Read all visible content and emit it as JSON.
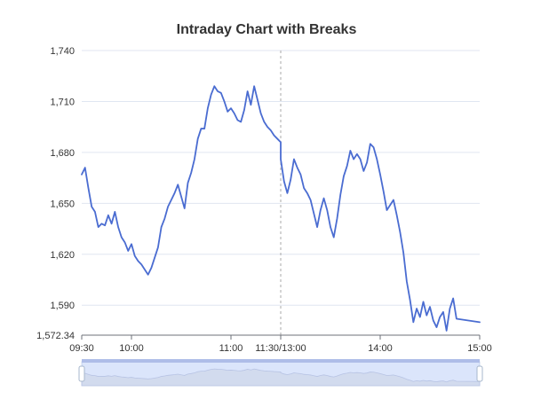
{
  "colors": {
    "series": "#4a6cd1",
    "title": "#333333",
    "axis": "#6e7079",
    "grid": "#e0e6f1",
    "break": "#aaaaaa",
    "zoom_frame": "#d2dbee"
  },
  "chart_data": {
    "type": "line",
    "title": "Intraday Chart with Breaks",
    "xlabel": "",
    "ylabel": "",
    "ylim": [
      1572.34,
      1740
    ],
    "y_ticks": [
      1572.34,
      1590,
      1620,
      1650,
      1680,
      1710,
      1740
    ],
    "y_tick_labels": [
      "1,572.34",
      "1,590",
      "1,620",
      "1,650",
      "1,680",
      "1,710",
      "1,740"
    ],
    "x_axis": {
      "range": [
        "09:30",
        "15:00"
      ],
      "break": {
        "start": "11:30",
        "end": "13:00",
        "label": "11:30/13:00"
      },
      "ticks": [
        {
          "time": "09:30",
          "label": "09:30"
        },
        {
          "time": "10:00",
          "label": "10:00"
        },
        {
          "time": "11:00",
          "label": "11:00"
        },
        {
          "time": "11:30",
          "label": "11:30/13:00"
        },
        {
          "time": "14:00",
          "label": "14:00"
        },
        {
          "time": "15:00",
          "label": "15:00"
        }
      ]
    },
    "grid": true,
    "legend": "none",
    "data_zoom": {
      "visible": true,
      "start_percent": 0,
      "end_percent": 100
    },
    "series": [
      {
        "values": [
          {
            "t": "09:30",
            "v": 1667
          },
          {
            "t": "09:32",
            "v": 1671
          },
          {
            "t": "09:34",
            "v": 1659
          },
          {
            "t": "09:36",
            "v": 1648
          },
          {
            "t": "09:38",
            "v": 1645
          },
          {
            "t": "09:40",
            "v": 1636
          },
          {
            "t": "09:42",
            "v": 1638
          },
          {
            "t": "09:44",
            "v": 1637
          },
          {
            "t": "09:46",
            "v": 1643
          },
          {
            "t": "09:48",
            "v": 1638
          },
          {
            "t": "09:50",
            "v": 1645
          },
          {
            "t": "09:52",
            "v": 1636
          },
          {
            "t": "09:54",
            "v": 1630
          },
          {
            "t": "09:56",
            "v": 1627
          },
          {
            "t": "09:58",
            "v": 1622
          },
          {
            "t": "10:00",
            "v": 1626
          },
          {
            "t": "10:02",
            "v": 1619
          },
          {
            "t": "10:04",
            "v": 1616
          },
          {
            "t": "10:06",
            "v": 1614
          },
          {
            "t": "10:08",
            "v": 1611
          },
          {
            "t": "10:10",
            "v": 1608
          },
          {
            "t": "10:12",
            "v": 1612
          },
          {
            "t": "10:14",
            "v": 1618
          },
          {
            "t": "10:16",
            "v": 1624
          },
          {
            "t": "10:18",
            "v": 1636
          },
          {
            "t": "10:20",
            "v": 1641
          },
          {
            "t": "10:22",
            "v": 1648
          },
          {
            "t": "10:24",
            "v": 1652
          },
          {
            "t": "10:26",
            "v": 1656
          },
          {
            "t": "10:28",
            "v": 1661
          },
          {
            "t": "10:30",
            "v": 1654
          },
          {
            "t": "10:32",
            "v": 1647
          },
          {
            "t": "10:34",
            "v": 1662
          },
          {
            "t": "10:36",
            "v": 1668
          },
          {
            "t": "10:38",
            "v": 1676
          },
          {
            "t": "10:40",
            "v": 1688
          },
          {
            "t": "10:42",
            "v": 1694
          },
          {
            "t": "10:44",
            "v": 1694
          },
          {
            "t": "10:46",
            "v": 1706
          },
          {
            "t": "10:48",
            "v": 1714
          },
          {
            "t": "10:50",
            "v": 1719
          },
          {
            "t": "10:52",
            "v": 1716
          },
          {
            "t": "10:54",
            "v": 1715
          },
          {
            "t": "10:56",
            "v": 1710
          },
          {
            "t": "10:58",
            "v": 1704
          },
          {
            "t": "11:00",
            "v": 1706
          },
          {
            "t": "11:02",
            "v": 1703
          },
          {
            "t": "11:04",
            "v": 1699
          },
          {
            "t": "11:06",
            "v": 1698
          },
          {
            "t": "11:08",
            "v": 1705
          },
          {
            "t": "11:10",
            "v": 1716
          },
          {
            "t": "11:12",
            "v": 1708
          },
          {
            "t": "11:14",
            "v": 1719
          },
          {
            "t": "11:16",
            "v": 1711
          },
          {
            "t": "11:18",
            "v": 1703
          },
          {
            "t": "11:20",
            "v": 1698
          },
          {
            "t": "11:22",
            "v": 1695
          },
          {
            "t": "11:24",
            "v": 1693
          },
          {
            "t": "11:26",
            "v": 1690
          },
          {
            "t": "11:28",
            "v": 1688
          },
          {
            "t": "11:30",
            "v": 1686
          },
          {
            "t": "13:00",
            "v": 1676
          },
          {
            "t": "13:02",
            "v": 1663
          },
          {
            "t": "13:04",
            "v": 1656
          },
          {
            "t": "13:06",
            "v": 1664
          },
          {
            "t": "13:08",
            "v": 1676
          },
          {
            "t": "13:10",
            "v": 1671
          },
          {
            "t": "13:12",
            "v": 1667
          },
          {
            "t": "13:14",
            "v": 1659
          },
          {
            "t": "13:16",
            "v": 1656
          },
          {
            "t": "13:18",
            "v": 1652
          },
          {
            "t": "13:20",
            "v": 1644
          },
          {
            "t": "13:22",
            "v": 1636
          },
          {
            "t": "13:24",
            "v": 1646
          },
          {
            "t": "13:26",
            "v": 1653
          },
          {
            "t": "13:28",
            "v": 1646
          },
          {
            "t": "13:30",
            "v": 1636
          },
          {
            "t": "13:32",
            "v": 1630
          },
          {
            "t": "13:34",
            "v": 1641
          },
          {
            "t": "13:36",
            "v": 1655
          },
          {
            "t": "13:38",
            "v": 1666
          },
          {
            "t": "13:40",
            "v": 1672
          },
          {
            "t": "13:42",
            "v": 1681
          },
          {
            "t": "13:44",
            "v": 1676
          },
          {
            "t": "13:46",
            "v": 1679
          },
          {
            "t": "13:48",
            "v": 1676
          },
          {
            "t": "13:50",
            "v": 1669
          },
          {
            "t": "13:52",
            "v": 1674
          },
          {
            "t": "13:54",
            "v": 1685
          },
          {
            "t": "13:56",
            "v": 1683
          },
          {
            "t": "13:58",
            "v": 1676
          },
          {
            "t": "14:00",
            "v": 1667
          },
          {
            "t": "14:02",
            "v": 1657
          },
          {
            "t": "14:04",
            "v": 1646
          },
          {
            "t": "14:06",
            "v": 1649
          },
          {
            "t": "14:08",
            "v": 1652
          },
          {
            "t": "14:10",
            "v": 1643
          },
          {
            "t": "14:12",
            "v": 1633
          },
          {
            "t": "14:14",
            "v": 1621
          },
          {
            "t": "14:16",
            "v": 1604
          },
          {
            "t": "14:18",
            "v": 1593
          },
          {
            "t": "14:20",
            "v": 1580
          },
          {
            "t": "14:22",
            "v": 1588
          },
          {
            "t": "14:24",
            "v": 1583
          },
          {
            "t": "14:26",
            "v": 1592
          },
          {
            "t": "14:28",
            "v": 1584
          },
          {
            "t": "14:30",
            "v": 1589
          },
          {
            "t": "14:32",
            "v": 1581
          },
          {
            "t": "14:34",
            "v": 1577
          },
          {
            "t": "14:36",
            "v": 1583
          },
          {
            "t": "14:38",
            "v": 1586
          },
          {
            "t": "14:40",
            "v": 1575
          },
          {
            "t": "14:42",
            "v": 1588
          },
          {
            "t": "14:44",
            "v": 1594
          },
          {
            "t": "14:46",
            "v": 1582
          },
          {
            "t": "15:00",
            "v": 1580
          }
        ]
      }
    ]
  }
}
